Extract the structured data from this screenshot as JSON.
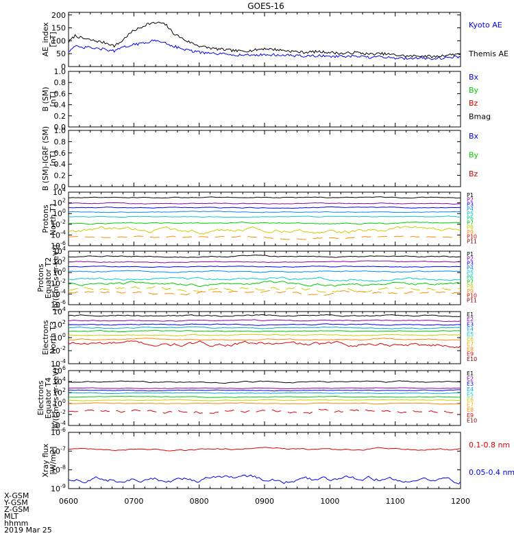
{
  "chart_data": {
    "type": "line",
    "title": "GOES-16",
    "x_ticks": [
      "0600",
      "0700",
      "0800",
      "0900",
      "1000",
      "1100",
      "1200"
    ],
    "x_range_hours": [
      6,
      12
    ],
    "footer_rows": [
      "X-GSM",
      "Y-GSM",
      "Z-GSM",
      "MLT",
      "hhmm",
      "2019 Mar 25"
    ],
    "colors": {
      "blue": "#0000ee",
      "green": "#00cc00",
      "red": "#dd0000",
      "black": "#000000",
      "navy": "#000099",
      "purple": "#8800aa",
      "cyan": "#00cccc",
      "yellow": "#cccc00",
      "orange": "#ff8800"
    },
    "panels": [
      {
        "id": "ae",
        "ylabel": [
          "AE_index",
          "[nT]"
        ],
        "yticks": [
          "0",
          "50",
          "100",
          "150",
          "200"
        ],
        "ylim": [
          0,
          210
        ],
        "scale": "linear",
        "legend": [
          {
            "name": "Kyoto AE",
            "color": "#0000ee"
          },
          {
            "name": "Themis AE",
            "color": "#000000"
          }
        ],
        "series": [
          {
            "name": "Themis AE",
            "color": "#000000",
            "x": [
              6.0,
              6.1,
              6.2,
              6.3,
              6.4,
              6.5,
              6.6,
              6.7,
              6.8,
              6.9,
              7.0,
              7.1,
              7.2,
              7.3,
              7.4,
              7.5,
              7.6,
              7.8,
              8.0,
              8.2,
              8.4,
              8.6,
              8.8,
              9.0,
              9.2,
              9.4,
              9.6,
              9.8,
              10.0,
              10.2,
              10.4,
              10.6,
              10.8,
              11.0,
              11.2,
              11.4,
              11.6,
              11.8,
              12.0
            ],
            "y": [
              95,
              120,
              110,
              105,
              100,
              95,
              90,
              80,
              95,
              120,
              140,
              150,
              165,
              168,
              170,
              160,
              130,
              100,
              80,
              70,
              65,
              60,
              62,
              70,
              65,
              60,
              55,
              58,
              55,
              50,
              55,
              48,
              50,
              45,
              40,
              42,
              38,
              45,
              50
            ]
          },
          {
            "name": "Kyoto AE",
            "color": "#0000ee",
            "x": [
              6.0,
              6.1,
              6.2,
              6.3,
              6.4,
              6.5,
              6.6,
              6.7,
              6.8,
              6.9,
              7.0,
              7.1,
              7.2,
              7.3,
              7.4,
              7.5,
              7.6,
              7.8,
              8.0,
              8.2,
              8.4,
              8.6,
              8.8,
              9.0,
              9.2,
              9.4,
              9.6,
              9.8,
              10.0,
              10.2,
              10.4,
              10.6,
              10.8,
              11.0,
              11.2,
              11.4,
              11.6,
              11.8,
              12.0
            ],
            "y": [
              60,
              78,
              72,
              75,
              70,
              68,
              65,
              60,
              70,
              80,
              85,
              88,
              95,
              100,
              98,
              90,
              80,
              65,
              55,
              50,
              48,
              45,
              44,
              46,
              45,
              43,
              40,
              42,
              40,
              38,
              40,
              35,
              38,
              33,
              32,
              34,
              30,
              35,
              38
            ]
          }
        ]
      },
      {
        "id": "bsm",
        "ylabel": [
          "B (SM)",
          "[nT]"
        ],
        "yticks": [
          "0.0",
          "0.2",
          "0.4",
          "0.6",
          "0.8",
          "1.0"
        ],
        "ylim": [
          0,
          1.0
        ],
        "scale": "linear",
        "legend": [
          {
            "name": "Bx",
            "color": "#0000ee"
          },
          {
            "name": "By",
            "color": "#00cc00"
          },
          {
            "name": "Bz",
            "color": "#dd0000"
          },
          {
            "name": "Bmag",
            "color": "#000000"
          }
        ],
        "series": []
      },
      {
        "id": "bigrf",
        "ylabel": [
          "B (SM)-IGRF (SM)",
          "[nT]"
        ],
        "yticks": [
          "0.0",
          "0.2",
          "0.4",
          "0.6",
          "0.8",
          "1.0"
        ],
        "ylim": [
          0,
          1.0
        ],
        "scale": "linear",
        "legend": [
          {
            "name": "Bx",
            "color": "#0000ee"
          },
          {
            "name": "By",
            "color": "#00cc00"
          },
          {
            "name": "Bz",
            "color": "#dd0000"
          }
        ],
        "series": []
      },
      {
        "id": "pn",
        "ylabel": [
          "Protons",
          "North T1"
        ],
        "yticks": [
          "10^-6",
          "10^-4",
          "10^-2",
          "10^0",
          "10^2",
          "10^4"
        ],
        "ylim": [
          -6,
          4
        ],
        "scale": "log",
        "channels": [
          {
            "name": "P1",
            "color": "#000000"
          },
          {
            "name": "P2",
            "color": "#8800aa"
          },
          {
            "name": "P3",
            "color": "#0000ee"
          },
          {
            "name": "P4",
            "color": "#0088ff"
          },
          {
            "name": "P5",
            "color": "#00cccc"
          },
          {
            "name": "P6",
            "color": "#00cc88"
          },
          {
            "name": "P7",
            "color": "#00cc00"
          },
          {
            "name": "P8",
            "color": "#cccc00"
          },
          {
            "name": "P9",
            "color": "#ff8800"
          },
          {
            "name": "P10",
            "color": "#dd0000"
          },
          {
            "name": "P11",
            "color": "#880000"
          }
        ],
        "series": [
          {
            "name": "P1",
            "color": "#000000",
            "level": 3.0,
            "wiggle": 0.1
          },
          {
            "name": "P2",
            "color": "#8800aa",
            "level": 1.9,
            "wiggle": 0.1
          },
          {
            "name": "P3",
            "color": "#0000ee",
            "level": 1.1,
            "wiggle": 0.1
          },
          {
            "name": "P4",
            "color": "#0088ff",
            "level": 0.3,
            "wiggle": 0.1
          },
          {
            "name": "P5",
            "color": "#00cccc",
            "level": -0.6,
            "wiggle": 0.1
          },
          {
            "name": "P6",
            "color": "#00cc00",
            "level": -1.8,
            "wiggle": 0.15
          },
          {
            "name": "P7",
            "color": "#cccc00",
            "level": -3.1,
            "wiggle": 0.5
          },
          {
            "name": "P8",
            "color": "#ff8800",
            "level": -4.4,
            "wiggle": 0.2,
            "dashed": true
          }
        ]
      },
      {
        "id": "pe",
        "ylabel": [
          "Protons",
          "Equator T2",
          "[p/(cm²-s-sr-keV)]"
        ],
        "yticks": [
          "10^-6",
          "10^-4",
          "10^-2",
          "10^0",
          "10^2",
          "10^4"
        ],
        "ylim": [
          -6,
          4
        ],
        "scale": "log",
        "channels": [
          {
            "name": "P1",
            "color": "#000000"
          },
          {
            "name": "P2",
            "color": "#8800aa"
          },
          {
            "name": "P3",
            "color": "#0000ee"
          },
          {
            "name": "P4",
            "color": "#0088ff"
          },
          {
            "name": "P5",
            "color": "#00cccc"
          },
          {
            "name": "P6",
            "color": "#00cc88"
          },
          {
            "name": "P7",
            "color": "#00cc00"
          },
          {
            "name": "P8",
            "color": "#cccc00"
          },
          {
            "name": "P9",
            "color": "#ff8800"
          },
          {
            "name": "P10",
            "color": "#dd0000"
          },
          {
            "name": "P11",
            "color": "#880000"
          }
        ],
        "series": [
          {
            "name": "P1",
            "color": "#000000",
            "level": 3.0,
            "wiggle": 0.15
          },
          {
            "name": "P2",
            "color": "#8800aa",
            "level": 2.0,
            "wiggle": 0.12
          },
          {
            "name": "P3",
            "color": "#0000ee",
            "level": 1.1,
            "wiggle": 0.1
          },
          {
            "name": "P4",
            "color": "#0088ff",
            "level": 0.2,
            "wiggle": 0.15
          },
          {
            "name": "P5",
            "color": "#00cccc",
            "level": -1.2,
            "wiggle": 0.3
          },
          {
            "name": "P6",
            "color": "#00cc00",
            "level": -2.1,
            "wiggle": 0.35
          },
          {
            "name": "P7",
            "color": "#cccc00",
            "level": -3.1,
            "wiggle": 0.4,
            "dashed": true
          },
          {
            "name": "P8",
            "color": "#ff8800",
            "level": -3.8,
            "wiggle": 0.3,
            "dashed": true
          }
        ]
      },
      {
        "id": "en",
        "ylabel": [
          "Electrons",
          "North T3"
        ],
        "yticks": [
          "10^-4",
          "10^-2",
          "10^0",
          "10^2",
          "10^4"
        ],
        "ylim": [
          -4,
          4
        ],
        "scale": "log",
        "channels": [
          {
            "name": "E1",
            "color": "#000000"
          },
          {
            "name": "E2",
            "color": "#8800aa"
          },
          {
            "name": "E3",
            "color": "#0000ee"
          },
          {
            "name": "E4",
            "color": "#00aacc"
          },
          {
            "name": "E5",
            "color": "#00cccc"
          },
          {
            "name": "E6",
            "color": "#cccc00"
          },
          {
            "name": "E7",
            "color": "#ffaa00"
          },
          {
            "name": "E8",
            "color": "#ff8800"
          },
          {
            "name": "E9",
            "color": "#dd0000"
          },
          {
            "name": "E10",
            "color": "#880000"
          }
        ],
        "series": [
          {
            "name": "E1",
            "color": "#000000",
            "level": 3.4,
            "wiggle": 0.15
          },
          {
            "name": "E2",
            "color": "#8800aa",
            "level": 2.6,
            "wiggle": 0.1
          },
          {
            "name": "E3",
            "color": "#0000ee",
            "level": 2.0,
            "wiggle": 0.1
          },
          {
            "name": "E4",
            "color": "#00aacc",
            "level": 1.5,
            "wiggle": 0.1
          },
          {
            "name": "E5",
            "color": "#00cc00",
            "level": 1.0,
            "wiggle": 0.1
          },
          {
            "name": "E6",
            "color": "#cccc00",
            "level": 0.4,
            "wiggle": 0.1
          },
          {
            "name": "E7",
            "color": "#ff8800",
            "level": -0.3,
            "wiggle": 0.12
          },
          {
            "name": "E8",
            "color": "#dd0000",
            "level": -1.0,
            "wiggle": 0.4
          }
        ]
      },
      {
        "id": "ee",
        "ylabel": [
          "Electrons",
          "Equator T4",
          "[e/(cm²-s-sr-keV)]"
        ],
        "yticks": [
          "10^-4",
          "10^-2",
          "10^0",
          "10^2",
          "10^4",
          "10^6"
        ],
        "ylim": [
          -4,
          6
        ],
        "scale": "log",
        "channels": [
          {
            "name": "E1",
            "color": "#000000"
          },
          {
            "name": "E2",
            "color": "#8800aa"
          },
          {
            "name": "E3",
            "color": "#0000ee"
          },
          {
            "name": "E4",
            "color": "#00aacc"
          },
          {
            "name": "E5",
            "color": "#00cccc"
          },
          {
            "name": "E6",
            "color": "#cccc00"
          },
          {
            "name": "E7",
            "color": "#ffaa00"
          },
          {
            "name": "E8",
            "color": "#ff8800"
          },
          {
            "name": "E9",
            "color": "#dd0000"
          },
          {
            "name": "E10",
            "color": "#880000"
          }
        ],
        "series": [
          {
            "name": "E1",
            "color": "#000000",
            "level": 3.9,
            "wiggle": 0.15
          },
          {
            "name": "E2",
            "color": "#8800aa",
            "level": 2.8,
            "wiggle": 0.08
          },
          {
            "name": "E3",
            "color": "#0000ee",
            "level": 2.4,
            "wiggle": 0.08
          },
          {
            "name": "E4",
            "color": "#00aacc",
            "level": 1.9,
            "wiggle": 0.08
          },
          {
            "name": "E5",
            "color": "#00cc00",
            "level": 1.2,
            "wiggle": 0.08
          },
          {
            "name": "E6",
            "color": "#cccc00",
            "level": 0.6,
            "wiggle": 0.08
          },
          {
            "name": "E7",
            "color": "#ff8800",
            "level": 0.0,
            "wiggle": 0.1
          },
          {
            "name": "E8",
            "color": "#dd0000",
            "level": -1.5,
            "wiggle": 0.4,
            "dashed": true
          }
        ]
      },
      {
        "id": "xray",
        "ylabel": [
          "Xray flux",
          "[W/m2]"
        ],
        "yticks": [
          "10^-9",
          "10^-8",
          "10^-7",
          "10^-6"
        ],
        "ylim": [
          -9,
          -6
        ],
        "scale": "log",
        "legend": [
          {
            "name": "0.1-0.8 nm",
            "color": "#dd0000"
          },
          {
            "name": "0.05-0.4 nm",
            "color": "#0000ee"
          }
        ],
        "series": [
          {
            "name": "0.1-0.8 nm",
            "color": "#dd0000",
            "level": -6.9,
            "wiggle": 0.06
          },
          {
            "name": "0.05-0.4 nm",
            "color": "#0000ee",
            "level": -8.55,
            "wiggle": 0.18
          }
        ]
      }
    ]
  }
}
